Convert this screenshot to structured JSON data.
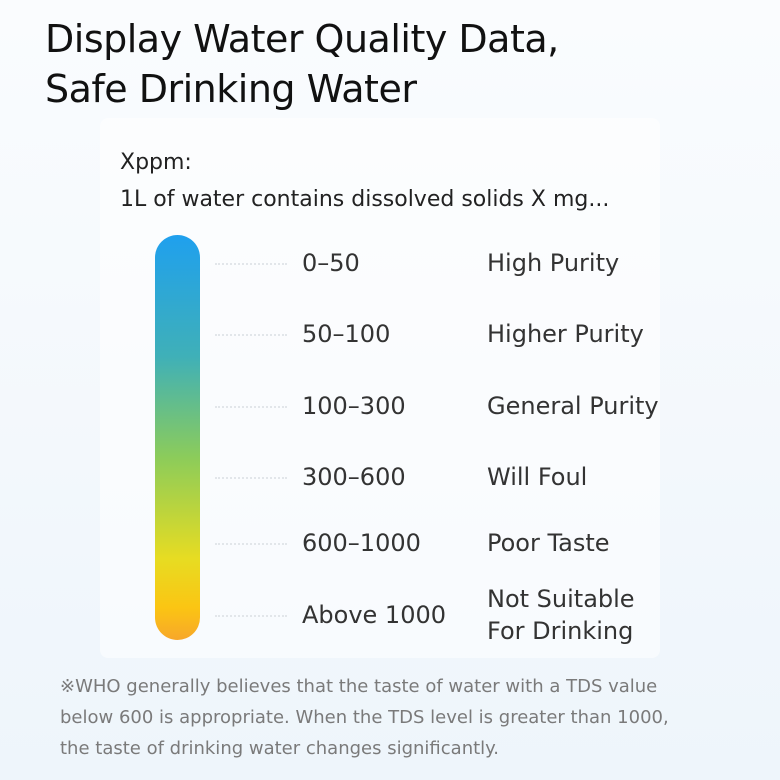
{
  "header": {
    "title": [
      "Display Water Quality Data,",
      "Safe Drinking Water"
    ]
  },
  "intro": [
    "Xppm:",
    "1L of water contains dissolved solids X mg..."
  ],
  "levels": [
    {
      "range": "0–50",
      "label": [
        "High Purity"
      ]
    },
    {
      "range": "50–100",
      "label": [
        "Higher Purity"
      ]
    },
    {
      "range": "100–300",
      "label": [
        "General Purity"
      ]
    },
    {
      "range": "300–600",
      "label": [
        "Will Foul"
      ]
    },
    {
      "range": "600–1000",
      "label": [
        "Poor Taste"
      ]
    },
    {
      "range": "Above 1000",
      "label": [
        "Not Suitable",
        "For Drinking"
      ]
    }
  ],
  "footnote": [
    "※WHO generally believes that the taste of water with a TDS value",
    "below 600 is appropriate. When the TDS level is greater than 1000,",
    "the taste of drinking water changes significantly."
  ]
}
